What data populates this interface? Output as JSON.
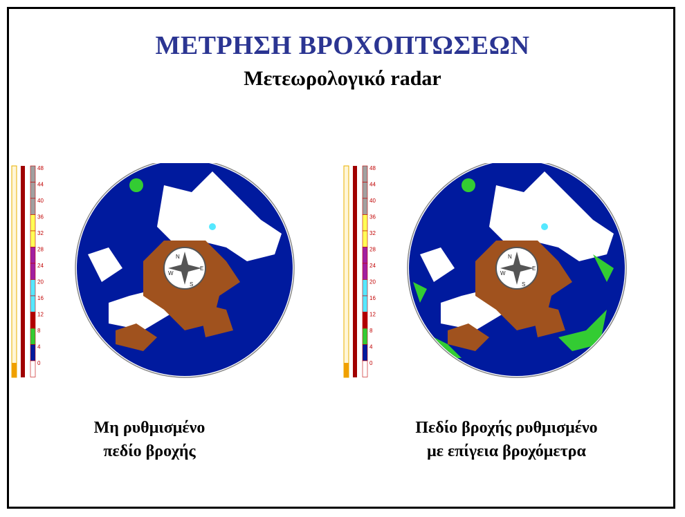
{
  "slide": {
    "title": "ΜΕΤΡΗΣΗ ΒΡΟΧΟΠΤΩΣΕΩΝ",
    "subtitle": "Μετεωρολογικό radar"
  },
  "legend": {
    "ticks": [
      "48",
      "44",
      "40",
      "36",
      "32",
      "28",
      "24",
      "20",
      "16",
      "12",
      "8",
      "4",
      "0"
    ],
    "colors": [
      "#a0a0a0",
      "#a0a0a0",
      "#a0a0a0",
      "#ffff55",
      "#ffff55",
      "#a020a0",
      "#a020a0",
      "#55e8ff",
      "#55e8ff",
      "#b00000",
      "#33cc33",
      "#001a9e",
      "#ffffff"
    ]
  },
  "panels": [
    {
      "caption_line1": "Μη ρυθμισμένο",
      "caption_line2": "πεδίο βροχής",
      "compass": [
        "N",
        "E",
        "S",
        "W"
      ]
    },
    {
      "caption_line1": "Πεδίο βροχής ρυθμισμένο",
      "caption_line2": "με επίγεια βροχόμετρα",
      "compass": [
        "N",
        "E",
        "S",
        "W"
      ]
    }
  ],
  "colors": {
    "title": "#2b3592",
    "radar_background": "#001a9e",
    "heavy_rain": "#a0521e",
    "light_rain": "#ffffff",
    "moderate_rain": "#33cc33"
  }
}
